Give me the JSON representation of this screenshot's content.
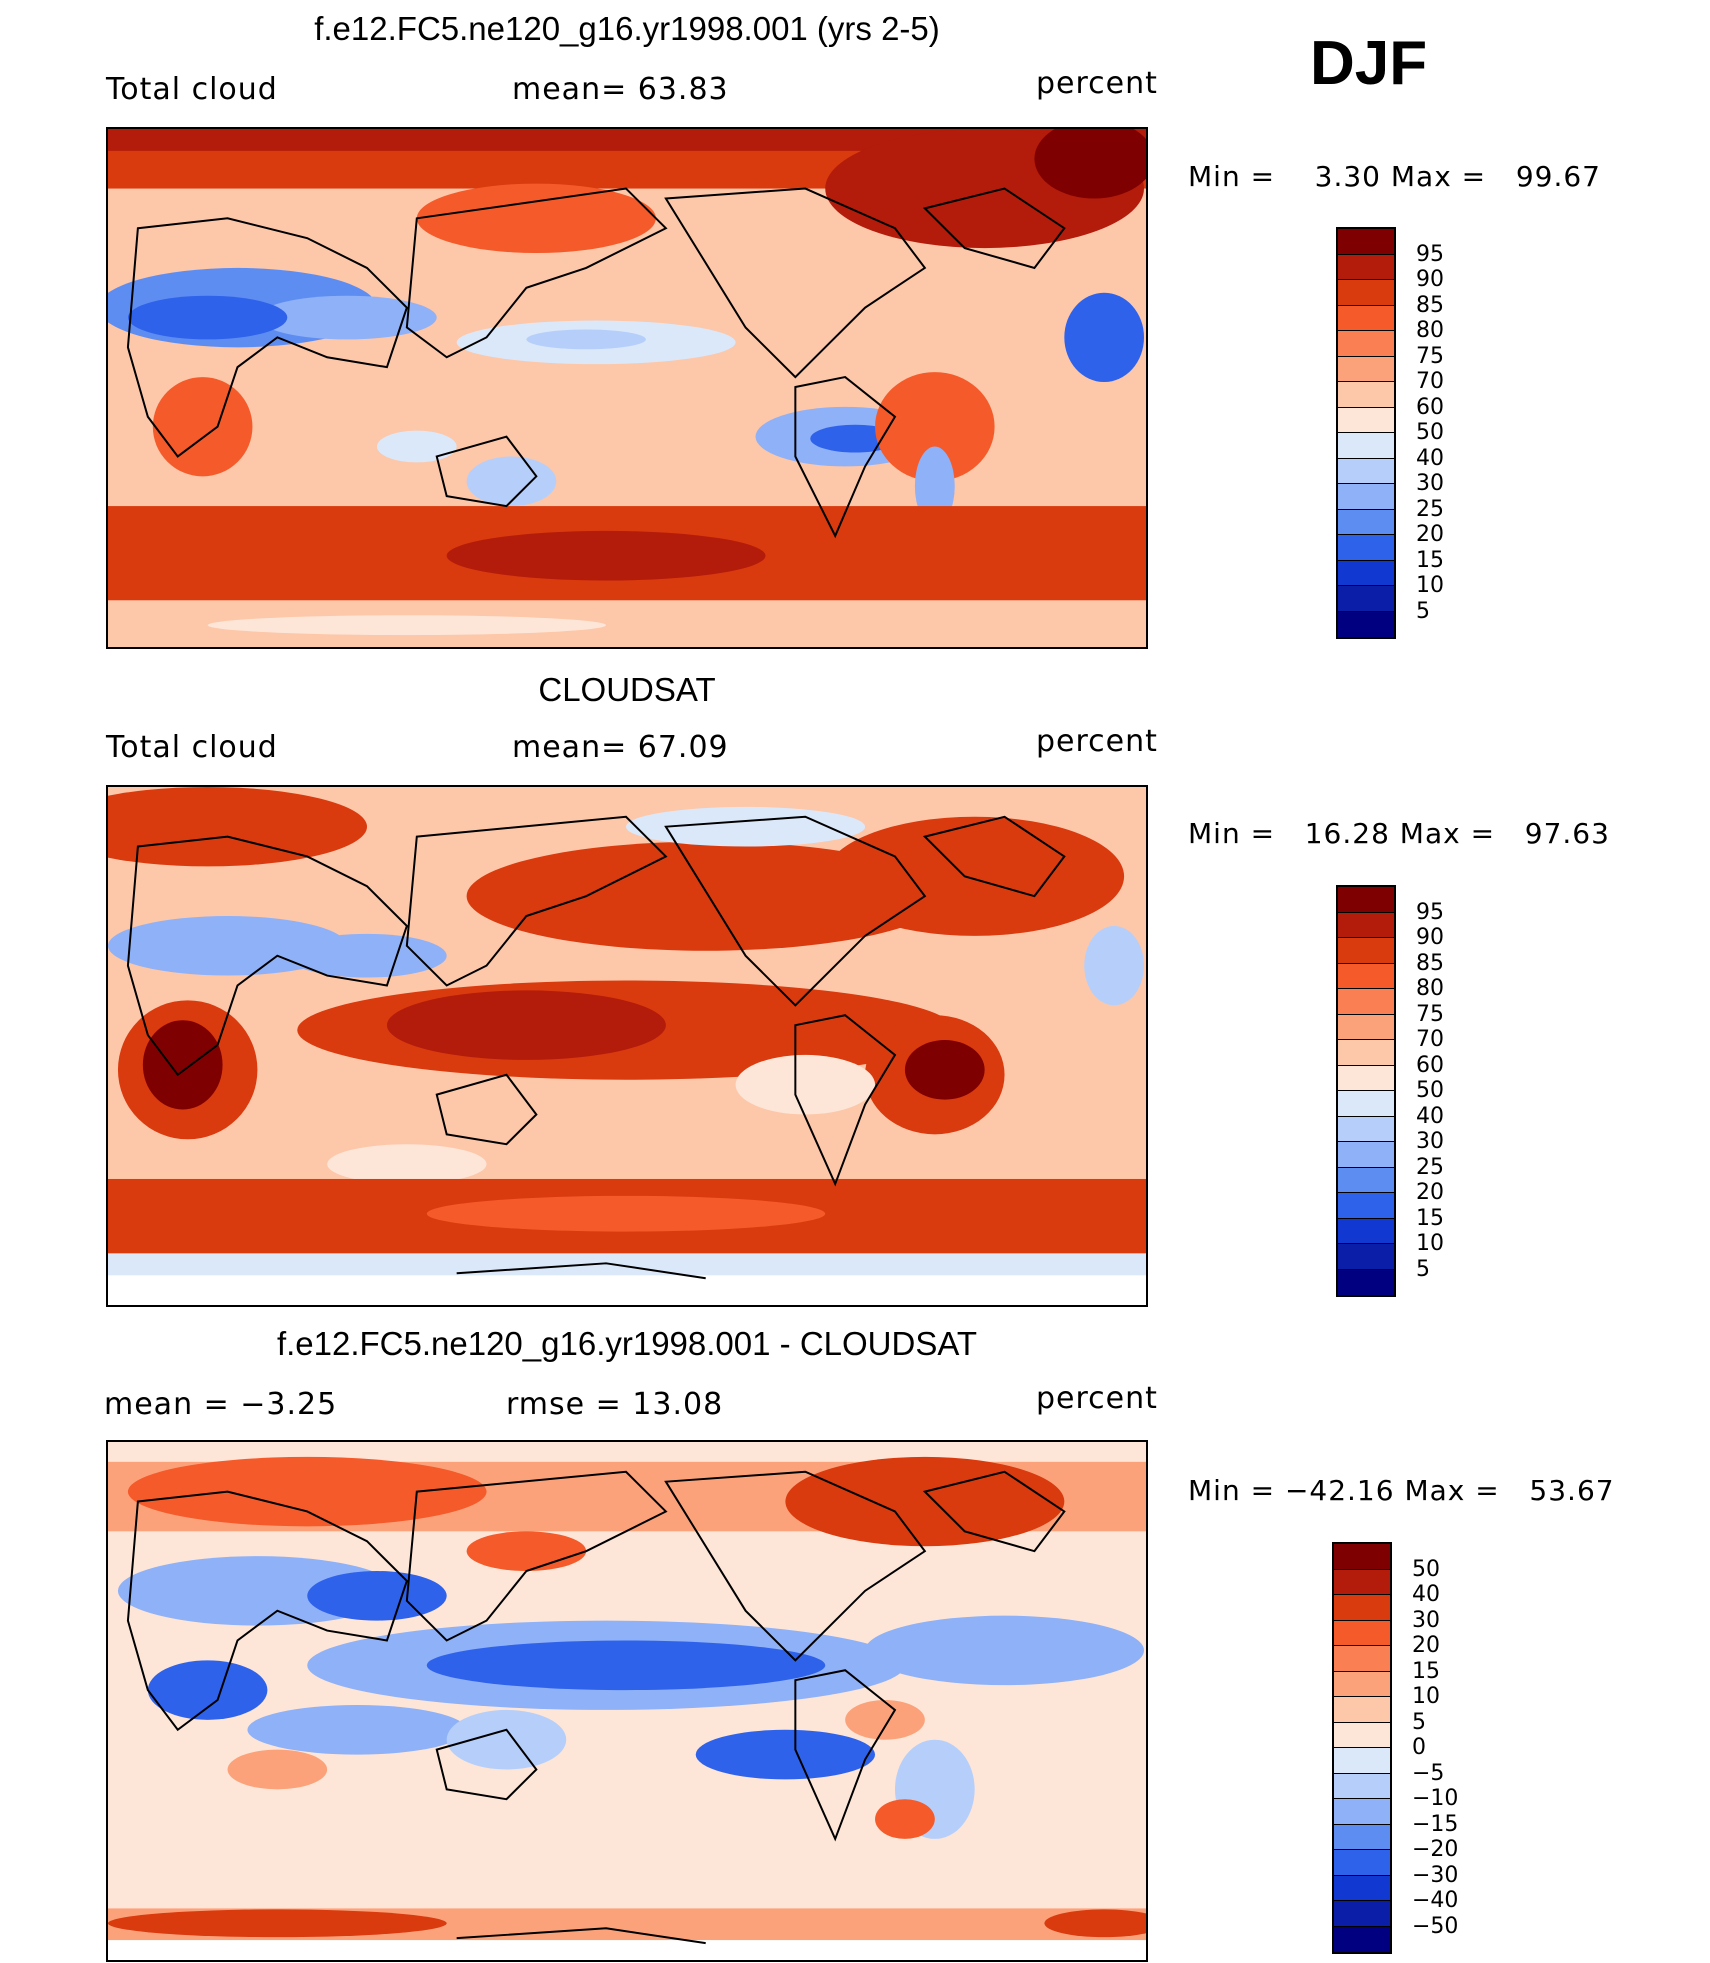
{
  "djf_label": "DJF",
  "panels": [
    {
      "title": "f.e12.FC5.ne120_g16.yr1998.001 (yrs 2-5)",
      "left_label": "Total cloud",
      "center_label": "mean=   63.83",
      "right_label": "percent",
      "minmax": "Min =    3.30 Max =   99.67",
      "colorbar": {
        "labels": [
          "95",
          "90",
          "85",
          "80",
          "75",
          "70",
          "60",
          "50",
          "40",
          "30",
          "25",
          "20",
          "15",
          "10",
          "5"
        ],
        "colors": [
          "#7f0000",
          "#b31b0a",
          "#d93a0e",
          "#f45a2a",
          "#fa8053",
          "#fca27a",
          "#fdc7a9",
          "#fde6d8",
          "#dbe8fa",
          "#b6cffa",
          "#8fb1f7",
          "#5e8df2",
          "#2f62ea",
          "#1138d0",
          "#0a1ea8",
          "#000080"
        ]
      }
    },
    {
      "title": "CLOUDSAT",
      "left_label": "Total cloud",
      "center_label": "mean=   67.09",
      "right_label": "percent",
      "minmax": "Min =   16.28 Max =   97.63",
      "colorbar": {
        "labels": [
          "95",
          "90",
          "85",
          "80",
          "75",
          "70",
          "60",
          "50",
          "40",
          "30",
          "25",
          "20",
          "15",
          "10",
          "5"
        ],
        "colors": [
          "#7f0000",
          "#b31b0a",
          "#d93a0e",
          "#f45a2a",
          "#fa8053",
          "#fca27a",
          "#fdc7a9",
          "#fde6d8",
          "#dbe8fa",
          "#b6cffa",
          "#8fb1f7",
          "#5e8df2",
          "#2f62ea",
          "#1138d0",
          "#0a1ea8",
          "#000080"
        ]
      }
    },
    {
      "title": "f.e12.FC5.ne120_g16.yr1998.001 - CLOUDSAT",
      "left_label": "mean =   −3.25",
      "center_label": "rmse =   13.08",
      "right_label": "percent",
      "minmax": "Min = −42.16 Max =   53.67",
      "colorbar": {
        "labels": [
          "50",
          "40",
          "30",
          "20",
          "15",
          "10",
          "5",
          "0",
          "−5",
          "−10",
          "−15",
          "−20",
          "−30",
          "−40",
          "−50"
        ],
        "colors": [
          "#7f0000",
          "#b31b0a",
          "#d93a0e",
          "#f45a2a",
          "#fa8053",
          "#fca27a",
          "#fdc7a9",
          "#fde6d8",
          "#dbe8fa",
          "#b6cffa",
          "#8fb1f7",
          "#5e8df2",
          "#2f62ea",
          "#1138d0",
          "#0a1ea8",
          "#000080"
        ]
      }
    }
  ]
}
